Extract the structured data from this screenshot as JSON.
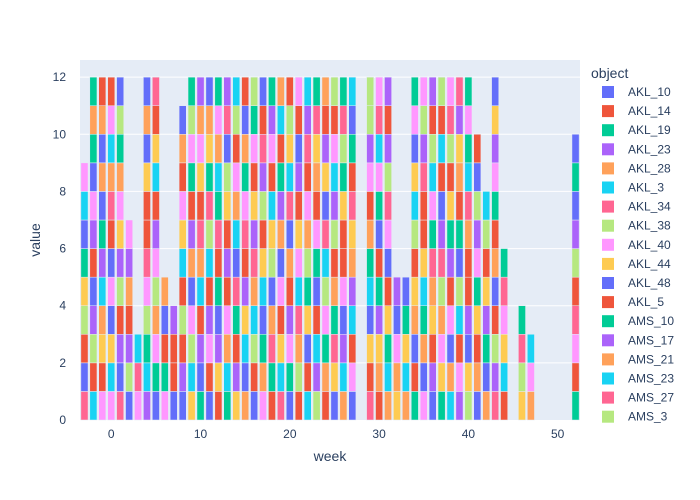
{
  "chart_data": {
    "type": "bar",
    "barmode": "stack",
    "xlabel": "week",
    "ylabel": "value",
    "legend_title": "object",
    "legend_position": "right",
    "grid": true,
    "xlim": [
      -3.5,
      52.5
    ],
    "ylim": [
      0,
      12.6
    ],
    "xticks": [
      0,
      10,
      20,
      30,
      40,
      50
    ],
    "yticks": [
      0,
      2,
      4,
      6,
      8,
      10,
      12
    ],
    "series": [
      {
        "name": "AKL_10",
        "color": "#636efa"
      },
      {
        "name": "AKL_14",
        "color": "#EF553B"
      },
      {
        "name": "AKL_19",
        "color": "#00cc96"
      },
      {
        "name": "AKL_23",
        "color": "#ab63fa"
      },
      {
        "name": "AKL_28",
        "color": "#FFA15A"
      },
      {
        "name": "AKL_3",
        "color": "#19d3f3"
      },
      {
        "name": "AKL_34",
        "color": "#FF6692"
      },
      {
        "name": "AKL_38",
        "color": "#B6E880"
      },
      {
        "name": "AKL_40",
        "color": "#FF97FF"
      },
      {
        "name": "AKL_44",
        "color": "#FECB52"
      },
      {
        "name": "AKL_48",
        "color": "#636efa"
      },
      {
        "name": "AKL_5",
        "color": "#EF553B"
      },
      {
        "name": "AMS_10",
        "color": "#00cc96"
      },
      {
        "name": "AMS_17",
        "color": "#ab63fa"
      },
      {
        "name": "AMS_21",
        "color": "#FFA15A"
      },
      {
        "name": "AMS_23",
        "color": "#19d3f3"
      },
      {
        "name": "AMS_27",
        "color": "#FF6692"
      },
      {
        "name": "AMS_3",
        "color": "#B6E880"
      }
    ],
    "bars": [
      {
        "x": -3,
        "segments": [
          "AKL_34",
          "AKL_10",
          "AKL_14",
          "AKL_38",
          "AKL_44",
          "AKL_19",
          "AKL_10",
          "AKL_3",
          "AKL_40"
        ]
      },
      {
        "x": -2,
        "segments": [
          "AKL_3",
          "AKL_14",
          "AKL_38",
          "AKL_23",
          "AKL_10",
          "AKL_5",
          "AKL_23",
          "AKL_40",
          "AKL_10",
          "AKL_19",
          "AKL_28",
          "AKL_19"
        ]
      },
      {
        "x": -1,
        "segments": [
          "AKL_40",
          "AKL_5",
          "AKL_44",
          "AKL_28",
          "AKL_3",
          "AKL_23",
          "AKL_19",
          "AKL_10",
          "AKL_28",
          "AKL_10",
          "AKL_28",
          "AKL_14"
        ]
      },
      {
        "x": 0,
        "segments": [
          "AKL_40",
          "AKL_3",
          "AKL_44",
          "AKL_48",
          "AKL_40",
          "AKL_10",
          "AKL_5",
          "AKL_34",
          "AKL_28",
          "AKL_3",
          "AKL_40",
          "AKL_14"
        ]
      },
      {
        "x": 1,
        "segments": [
          "AKL_34",
          "AKL_10",
          "AKL_23",
          "AKL_5",
          "AKL_38",
          "AKL_23",
          "AKL_44",
          "AKL_40",
          "AKL_28",
          "AKL_19",
          "AKL_38",
          "AKL_10"
        ]
      },
      {
        "x": 2,
        "segments": [
          "AKL_10",
          "AKL_38",
          "AKL_23",
          "AKL_14",
          "AKL_28",
          "AKL_23",
          "AKL_40"
        ]
      },
      {
        "x": 3,
        "segments": [
          "AKL_40",
          "AKL_34",
          "AKL_3"
        ]
      },
      {
        "x": 4,
        "segments": [
          "AKL_23",
          "AKL_3",
          "AKL_19",
          "AKL_38",
          "AKL_40",
          "AKL_34",
          "AKL_5",
          "AKL_14",
          "AKL_44",
          "AKL_10",
          "AKL_28",
          "AKL_10"
        ]
      },
      {
        "x": 5,
        "segments": [
          "AKL_10",
          "AKL_19",
          "AKL_40",
          "AKL_28",
          "AKL_38",
          "AKL_40",
          "AKL_23",
          "AKL_5",
          "AKL_3",
          "AKL_44",
          "AKL_14",
          "AKL_34"
        ]
      },
      {
        "x": 6,
        "segments": [
          "AKL_40",
          "AKL_19",
          "AKL_5",
          "AKL_10",
          "AKL_28"
        ]
      },
      {
        "x": 7,
        "segments": [
          "AKL_10",
          "AKL_5",
          "AKL_14",
          "AKL_23"
        ]
      },
      {
        "x": 8,
        "segments": [
          "AKL_10",
          "AKL_23",
          "AKL_5",
          "AKL_38",
          "AKL_14",
          "AKL_3",
          "AKL_44",
          "AKL_40",
          "AKL_5",
          "AKL_28",
          "AKL_10"
        ]
      },
      {
        "x": 9,
        "segments": [
          "AKL_44",
          "AKL_3",
          "AKL_38",
          "AKL_40",
          "AKL_10",
          "AKL_28",
          "AKL_23",
          "AKL_14",
          "AKL_19",
          "AKL_40",
          "AKL_38",
          "AKL_19"
        ]
      },
      {
        "x": 10,
        "segments": [
          "AKL_19",
          "AKL_10",
          "AKL_23",
          "AKL_5",
          "AKL_3",
          "AKL_28",
          "AKL_34",
          "AKL_5",
          "AKL_44",
          "AKL_40",
          "AKL_28",
          "AKL_23"
        ]
      },
      {
        "x": 11,
        "segments": [
          "AKL_10",
          "AKL_14",
          "AKL_40",
          "AKL_23",
          "AKL_5",
          "AKL_3",
          "AKL_38",
          "AKL_34",
          "AKL_19",
          "AKL_44",
          "AKL_28",
          "AKL_10"
        ]
      },
      {
        "x": 12,
        "segments": [
          "AKL_5",
          "AKL_44",
          "AKL_23",
          "AKL_10",
          "AKL_19",
          "AKL_5",
          "AKL_34",
          "AKL_19",
          "AKL_3",
          "AKL_28",
          "AKL_40",
          "AKL_19"
        ]
      },
      {
        "x": 13,
        "segments": [
          "AKL_19",
          "AKL_3",
          "AKL_28",
          "AKL_40",
          "AKL_14",
          "AKL_23",
          "AKL_5",
          "AKL_44",
          "AKL_38",
          "AKL_10",
          "AKL_34",
          "AKL_23"
        ]
      },
      {
        "x": 14,
        "segments": [
          "AKL_44",
          "AKL_23",
          "AKL_5",
          "AKL_19",
          "AKL_34",
          "AKL_10",
          "AKL_3",
          "AKL_28",
          "AKL_40",
          "AKL_14",
          "AKL_38",
          "AKL_3"
        ]
      },
      {
        "x": 15,
        "segments": [
          "AKL_28",
          "AKL_10",
          "AKL_3",
          "AKL_44",
          "AKL_23",
          "AKL_5",
          "AKL_34",
          "AKL_40",
          "AKL_19",
          "AKL_28",
          "AKL_10",
          "AKL_14"
        ]
      },
      {
        "x": 16,
        "segments": [
          "AKL_10",
          "AKL_14",
          "AKL_38",
          "AKL_3",
          "AKL_28",
          "AKL_34",
          "AKL_23",
          "AKL_44",
          "AKL_5",
          "AKL_40",
          "AKL_19",
          "AKL_38"
        ]
      },
      {
        "x": 17,
        "segments": [
          "AKL_40",
          "AKL_28",
          "AKL_19",
          "AKL_10",
          "AKL_3",
          "AKL_44",
          "AKL_14",
          "AKL_38",
          "AKL_23",
          "AKL_34",
          "AKL_5",
          "AKL_10"
        ]
      },
      {
        "x": 18,
        "segments": [
          "AKL_5",
          "AKL_19",
          "AKL_34",
          "AKL_28",
          "AKL_10",
          "AKL_38",
          "AKL_44",
          "AKL_3",
          "AKL_14",
          "AKL_40",
          "AKL_23",
          "AKL_19"
        ]
      },
      {
        "x": 19,
        "segments": [
          "AKL_34",
          "AKL_3",
          "AKL_44",
          "AKL_5",
          "AKL_40",
          "AKL_10",
          "AKL_28",
          "AKL_23",
          "AKL_19",
          "AKL_14",
          "AKL_3",
          "AKL_28"
        ]
      },
      {
        "x": 20,
        "segments": [
          "AKL_10",
          "AKL_19",
          "AKL_40",
          "AKL_23",
          "AKL_5",
          "AKL_28",
          "AKL_10",
          "AKL_34",
          "AKL_3",
          "AKL_44",
          "AKL_38",
          "AKL_14"
        ]
      },
      {
        "x": 21,
        "segments": [
          "AKL_14",
          "AKL_38",
          "AKL_28",
          "AKL_34",
          "AKL_3",
          "AKL_40",
          "AKL_44",
          "AKL_14",
          "AKL_23",
          "AKL_10",
          "AKL_5",
          "AKL_40"
        ]
      },
      {
        "x": 22,
        "segments": [
          "AKL_3",
          "AKL_5",
          "AKL_10",
          "AKL_44",
          "AKL_19",
          "AKL_38",
          "AKL_28",
          "AKL_40",
          "AKL_14",
          "AKL_34",
          "AKL_23",
          "AKL_3"
        ]
      },
      {
        "x": 23,
        "segments": [
          "AKL_38",
          "AKL_23",
          "AKL_3",
          "AKL_14",
          "AKL_10",
          "AKL_19",
          "AKL_40",
          "AKL_5",
          "AKL_28",
          "AKL_44",
          "AKL_34",
          "AKL_19"
        ]
      },
      {
        "x": 24,
        "segments": [
          "AKL_5",
          "AKL_28",
          "AKL_19",
          "AKL_40",
          "AKL_38",
          "AKL_3",
          "AKL_34",
          "AKL_10",
          "AKL_44",
          "AKL_23",
          "AKL_14",
          "AKL_28"
        ]
      },
      {
        "x": 25,
        "segments": [
          "AKL_10",
          "AKL_44",
          "AKL_34",
          "AKL_19",
          "AKL_28",
          "AKL_14",
          "AKL_38",
          "AKL_23",
          "AKL_3",
          "AKL_40",
          "AKL_5",
          "AKL_38"
        ]
      },
      {
        "x": 26,
        "segments": [
          "AKL_28",
          "AKL_3",
          "AKL_23",
          "AKL_10",
          "AKL_40",
          "AKL_5",
          "AKL_14",
          "AKL_44",
          "AKL_19",
          "AKL_38",
          "AKL_34",
          "AKL_19"
        ]
      },
      {
        "x": 27,
        "segments": [
          "AKL_10",
          "AKL_40",
          "AKL_14",
          "AKL_3",
          "AKL_23",
          "AKL_28",
          "AKL_44",
          "AKL_34",
          "AKL_5",
          "AKL_19",
          "AKL_10",
          "AKL_3"
        ]
      },
      {
        "x": 29,
        "segments": [
          "AKL_34",
          "AKL_14",
          "AKL_44",
          "AKL_10",
          "AKL_3",
          "AKL_19",
          "AKL_28",
          "AKL_5",
          "AKL_40",
          "AKL_23",
          "AKL_38",
          "AKL_38"
        ]
      },
      {
        "x": 30,
        "segments": [
          "AKL_14",
          "AKL_28",
          "AKL_44",
          "AKL_23",
          "AKL_19",
          "AKL_5",
          "AKL_10",
          "AKL_19",
          "AKL_40",
          "AKL_3",
          "AKL_34",
          "AKL_40"
        ]
      },
      {
        "x": 31,
        "segments": [
          "AKL_28",
          "AKL_3",
          "AKL_19",
          "AKL_44",
          "AKL_5",
          "AKL_10",
          "AKL_40",
          "AKL_34",
          "AKL_38",
          "AKL_23",
          "AKL_14",
          "AKL_23"
        ]
      },
      {
        "x": 32,
        "segments": [
          "AKL_44",
          "AKL_28",
          "AKL_40",
          "AKL_10",
          "AKL_23"
        ]
      },
      {
        "x": 33,
        "segments": [
          "AKL_28",
          "AKL_3",
          "AKL_44",
          "AKL_19",
          "AKL_10"
        ]
      },
      {
        "x": 34,
        "segments": [
          "AKL_19",
          "AKL_14",
          "AKL_10",
          "AKL_28",
          "AKL_44",
          "AKL_5",
          "AKL_38",
          "AKL_3",
          "AKL_44",
          "AKL_10",
          "AKL_40",
          "AKL_19"
        ]
      },
      {
        "x": 35,
        "segments": [
          "AKL_40",
          "AKL_10",
          "AKL_28",
          "AKL_19",
          "AKL_3",
          "AKL_44",
          "AKL_14",
          "AKL_5",
          "AKL_34",
          "AKL_23",
          "AKL_38",
          "AKL_40"
        ]
      },
      {
        "x": 36,
        "segments": [
          "AKL_10",
          "AKL_23",
          "AKL_5",
          "AKL_44",
          "AKL_28",
          "AKL_34",
          "AKL_19",
          "AKL_40",
          "AKL_3",
          "AKL_38",
          "AKL_14",
          "AKL_23"
        ]
      },
      {
        "x": 37,
        "segments": [
          "AKL_19",
          "AKL_44",
          "AKL_40",
          "AKL_28",
          "AKL_38",
          "AKL_34",
          "AKL_23",
          "AKL_10",
          "AKL_5",
          "AKL_3",
          "AKL_14",
          "AKL_38"
        ]
      },
      {
        "x": 38,
        "segments": [
          "AKL_3",
          "AKL_28",
          "AKL_10",
          "AKL_40",
          "AKL_14",
          "AKL_23",
          "AKL_19",
          "AKL_44",
          "AKL_5",
          "AKL_38",
          "AKL_34",
          "AKL_40"
        ]
      },
      {
        "x": 39,
        "segments": [
          "AKL_23",
          "AKL_40",
          "AKL_14",
          "AKL_3",
          "AKL_38",
          "AKL_10",
          "AKL_19",
          "AKL_5",
          "AKL_28",
          "AKL_44",
          "AKL_23",
          "AKL_34"
        ]
      },
      {
        "x": 40,
        "segments": [
          "AKL_38",
          "AKL_44",
          "AKL_10",
          "AKL_23",
          "AKL_5",
          "AKL_14",
          "AKL_28",
          "AKL_34",
          "AKL_3",
          "AKL_19",
          "AKL_40",
          "AKL_19"
        ]
      },
      {
        "x": 41,
        "segments": [
          "AKL_10",
          "AKL_28",
          "AKL_5",
          "AKL_44",
          "AKL_19",
          "AKL_40",
          "AKL_23",
          "AKL_38",
          "AKL_10",
          "AKL_5"
        ]
      },
      {
        "x": 42,
        "segments": [
          "AKL_28",
          "AKL_10",
          "AKL_19",
          "AKL_23",
          "AKL_44",
          "AKL_5",
          "AKL_38",
          "AKL_3"
        ]
      },
      {
        "x": 43,
        "segments": [
          "AKL_34",
          "AKL_23",
          "AKL_38",
          "AKL_14",
          "AKL_10",
          "AKL_28",
          "AKL_5",
          "AKL_19",
          "AKL_40",
          "AKL_23",
          "AKL_44",
          "AKL_10"
        ]
      },
      {
        "x": 44,
        "segments": [
          "AKL_5",
          "AKL_3",
          "AKL_44",
          "AKL_40",
          "AKL_34",
          "AKL_19"
        ]
      },
      {
        "x": 46,
        "segments": [
          "AKL_44",
          "AKL_38",
          "AKL_34",
          "AKL_19"
        ]
      },
      {
        "x": 47,
        "segments": [
          "AKL_28",
          "AKL_40",
          "AKL_3"
        ]
      },
      {
        "x": 52,
        "segments": [
          "AKL_19",
          "AKL_14",
          "AKL_40",
          "AKL_34",
          "AKL_5",
          "AKL_38",
          "AKL_23",
          "AKL_10",
          "AKL_19",
          "AKL_10"
        ]
      }
    ]
  }
}
